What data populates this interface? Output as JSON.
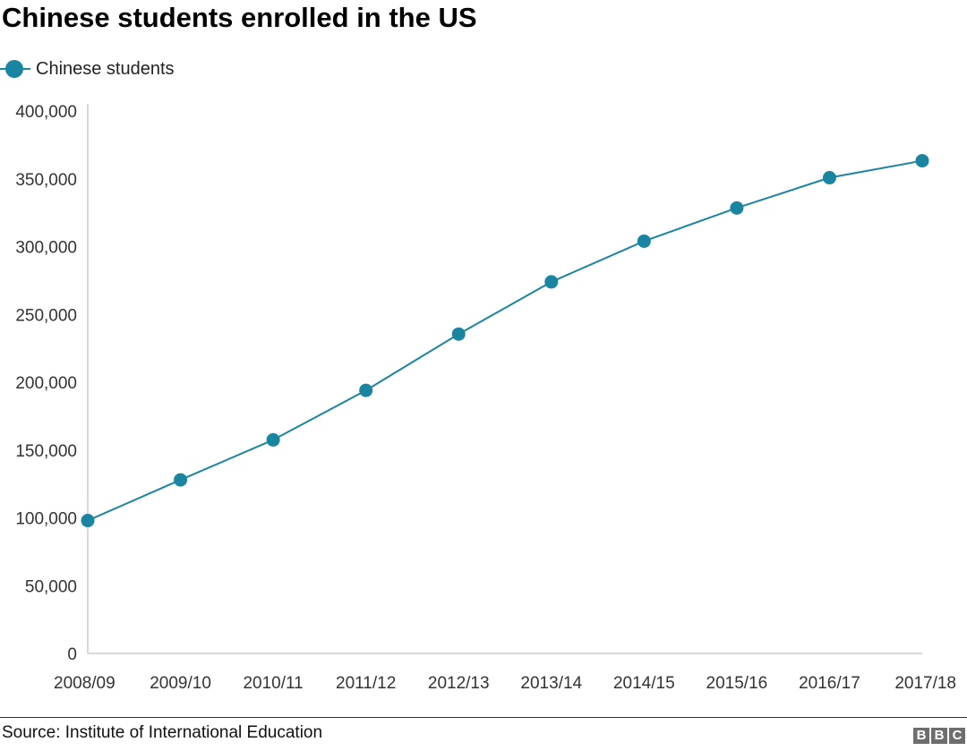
{
  "chart_data": {
    "type": "line",
    "title": "Chinese students enrolled in the US",
    "xlabel": "",
    "ylabel": "",
    "categories": [
      "2008/09",
      "2009/10",
      "2010/11",
      "2011/12",
      "2012/13",
      "2013/14",
      "2014/15",
      "2015/16",
      "2016/17",
      "2017/18"
    ],
    "series": [
      {
        "name": "Chinese students",
        "color": "#1a85a0",
        "values": [
          98000,
          128000,
          157500,
          194000,
          235500,
          274000,
          304000,
          328500,
          350800,
          363300
        ]
      }
    ],
    "ylim": [
      0,
      400000
    ],
    "yticks": [
      0,
      50000,
      100000,
      150000,
      200000,
      250000,
      300000,
      350000,
      400000
    ],
    "ytick_labels": [
      "0",
      "50,000",
      "100,000",
      "150,000",
      "200,000",
      "250,000",
      "300,000",
      "350,000",
      "400,000"
    ],
    "grid": false,
    "legend": "top-left"
  },
  "footer": {
    "source": "Source: Institute of International Education",
    "logo_letters": [
      "B",
      "B",
      "C"
    ]
  },
  "colors": {
    "series": "#1a85a0",
    "logo_box": "#6e6e6e",
    "axis": "#cccccc"
  }
}
